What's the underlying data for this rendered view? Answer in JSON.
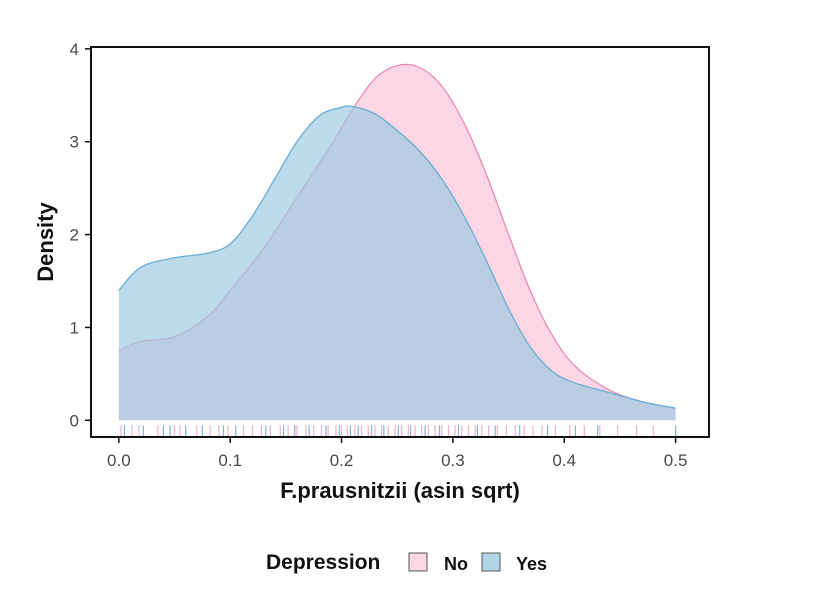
{
  "chart_data": {
    "type": "area",
    "xlabel": "F.prausnitzii (asin sqrt)",
    "ylabel": "Density",
    "xlim": [
      -0.025,
      0.53
    ],
    "ylim": [
      -0.18,
      4.02
    ],
    "x_ticks": [
      0.0,
      0.1,
      0.2,
      0.3,
      0.4,
      0.5
    ],
    "x_tick_labels": [
      "0.0",
      "0.1",
      "0.2",
      "0.3",
      "0.4",
      "0.5"
    ],
    "y_ticks": [
      0,
      1,
      2,
      3,
      4
    ],
    "y_tick_labels": [
      "0",
      "1",
      "2",
      "3",
      "4"
    ],
    "grid": false,
    "legend": {
      "title": "Depression",
      "position": "bottom",
      "entries": [
        "No",
        "Yes"
      ]
    },
    "series": [
      {
        "name": "No",
        "color": "#f7b6d2",
        "x": [
          0.0,
          0.02,
          0.05,
          0.08,
          0.1,
          0.13,
          0.16,
          0.19,
          0.21,
          0.23,
          0.25,
          0.27,
          0.29,
          0.31,
          0.33,
          0.35,
          0.37,
          0.39,
          0.41,
          0.44,
          0.47,
          0.5
        ],
        "y": [
          0.75,
          0.85,
          0.9,
          1.12,
          1.4,
          1.85,
          2.4,
          2.95,
          3.35,
          3.68,
          3.82,
          3.8,
          3.6,
          3.2,
          2.65,
          2.0,
          1.38,
          0.9,
          0.58,
          0.33,
          0.2,
          0.13
        ]
      },
      {
        "name": "Yes",
        "color": "#9ecae1",
        "x": [
          0.0,
          0.02,
          0.05,
          0.08,
          0.1,
          0.12,
          0.14,
          0.16,
          0.18,
          0.2,
          0.21,
          0.23,
          0.25,
          0.27,
          0.29,
          0.31,
          0.33,
          0.35,
          0.37,
          0.39,
          0.41,
          0.44,
          0.47,
          0.5
        ],
        "y": [
          1.4,
          1.65,
          1.75,
          1.8,
          1.9,
          2.2,
          2.6,
          3.0,
          3.28,
          3.37,
          3.38,
          3.3,
          3.12,
          2.9,
          2.6,
          2.2,
          1.72,
          1.2,
          0.78,
          0.52,
          0.4,
          0.3,
          0.2,
          0.13
        ]
      }
    ],
    "rug": {
      "No": [
        0.002,
        0.012,
        0.018,
        0.035,
        0.05,
        0.055,
        0.07,
        0.082,
        0.09,
        0.098,
        0.112,
        0.12,
        0.128,
        0.136,
        0.145,
        0.152,
        0.16,
        0.168,
        0.175,
        0.182,
        0.188,
        0.195,
        0.2,
        0.205,
        0.212,
        0.218,
        0.224,
        0.23,
        0.236,
        0.242,
        0.248,
        0.254,
        0.26,
        0.266,
        0.272,
        0.278,
        0.284,
        0.29,
        0.296,
        0.302,
        0.308,
        0.314,
        0.32,
        0.326,
        0.332,
        0.34,
        0.348,
        0.356,
        0.364,
        0.372,
        0.38,
        0.392,
        0.405,
        0.418,
        0.432,
        0.448,
        0.465,
        0.48
      ],
      "Yes": [
        0.005,
        0.022,
        0.04,
        0.046,
        0.06,
        0.075,
        0.094,
        0.105,
        0.132,
        0.148,
        0.158,
        0.171,
        0.186,
        0.198,
        0.208,
        0.215,
        0.227,
        0.238,
        0.251,
        0.262,
        0.275,
        0.288,
        0.305,
        0.322,
        0.338,
        0.36,
        0.385,
        0.41,
        0.43,
        0.5
      ]
    }
  }
}
